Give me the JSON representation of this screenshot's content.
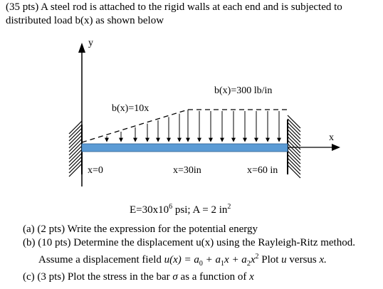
{
  "problem": {
    "statement": "(35 pts) A steel rod is attached to the rigid walls at each end and is subjected to distributed load b(x) as shown below"
  },
  "figure": {
    "y_axis_label": "y",
    "x_axis_label": "x",
    "load_left_label": "b(x)=10x",
    "load_right_label": "b(x)=300 lb/in",
    "pos_left_label": "x=0",
    "pos_mid_label": "x=30in",
    "pos_right_label": "x=60 in",
    "bar_color": "#5b9bd5",
    "wall_hatch_color": "#000000"
  },
  "given": {
    "e_prefix": "E=30x10",
    "e_exp": "6",
    "e_unit": " psi;  A",
    "eq": " = ",
    "area": "2 in",
    "area_exp": "2"
  },
  "parts": {
    "a": "(a) (2 pts) Write the expression for the potential energy",
    "b": "(b) (10 pts) Determine the displacement u(x) using the Rayleigh-Ritz method.",
    "b2_prefix": "Assume a displacement field ",
    "b2_u": "u",
    "b2_x": "(x) = a",
    "b2_s0": "0",
    "b2_p1": " + a",
    "b2_s1": "1",
    "b2_x1": "x + a",
    "b2_s2": "2",
    "b2_x2": "x",
    "b2_e2": "2",
    "b2_plot": "  Plot ",
    "b2_uv": "u",
    "b2_versus": " versus ",
    "b2_xv": "x.",
    "c_prefix": "(c) (3 pts) Plot the stress in the bar ",
    "c_sigma": "σ",
    "c_mid": " as a function of ",
    "c_x": "x"
  }
}
